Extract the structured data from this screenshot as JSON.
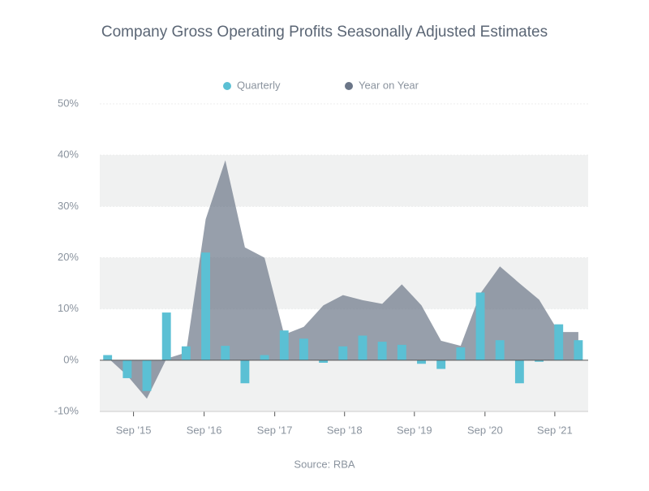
{
  "chart_data": {
    "type": "bar_area",
    "title": "Company Gross Operating Profits Seasonally Adjusted Estimates",
    "source": "Source: RBA",
    "x": [
      0,
      1,
      2,
      3,
      4,
      5,
      6,
      7,
      8,
      9,
      10,
      11,
      12,
      13,
      14,
      15,
      16,
      17,
      18,
      19,
      20,
      21,
      22,
      23,
      24
    ],
    "xlim": [
      -0.4,
      24.5
    ],
    "xticks": [
      {
        "value": 1.32,
        "label": "Sep '15"
      },
      {
        "value": 4.92,
        "label": "Sep '16"
      },
      {
        "value": 8.52,
        "label": "Sep '17"
      },
      {
        "value": 12.08,
        "label": "Sep '18"
      },
      {
        "value": 15.64,
        "label": "Sep '19"
      },
      {
        "value": 19.24,
        "label": "Sep '20"
      },
      {
        "value": 22.8,
        "label": "Sep '21"
      }
    ],
    "ylim": [
      -10,
      50
    ],
    "yticks": [
      {
        "value": -10,
        "label": "-10%"
      },
      {
        "value": 0,
        "label": "0%"
      },
      {
        "value": 10,
        "label": "10%"
      },
      {
        "value": 20,
        "label": "20%"
      },
      {
        "value": 30,
        "label": "30%"
      },
      {
        "value": 40,
        "label": "40%"
      },
      {
        "value": 50,
        "label": "50%"
      }
    ],
    "grid": "bands",
    "legend": "top",
    "series": [
      {
        "name": "Quarterly",
        "kind": "bar",
        "color": "#5bc0d4",
        "values": [
          1.0,
          -3.5,
          -6,
          9.3,
          2.7,
          21,
          2.8,
          -4.5,
          1,
          5.8,
          4.2,
          -0.5,
          2.7,
          4.8,
          3.6,
          3,
          -0.7,
          -1.7,
          2.5,
          13.2,
          3.9,
          -4.5,
          -0.3,
          7,
          3.9
        ]
      },
      {
        "name": "Year on Year",
        "kind": "area",
        "color": "#6b7688",
        "values": [
          0.5,
          -3,
          -7.5,
          0.3,
          1.5,
          27.5,
          39,
          22,
          20,
          5,
          6.5,
          10.7,
          12.7,
          11.7,
          11,
          14.8,
          10.7,
          3.8,
          2.8,
          13,
          18.3,
          15,
          11.8,
          5.5,
          5.5
        ]
      }
    ]
  }
}
